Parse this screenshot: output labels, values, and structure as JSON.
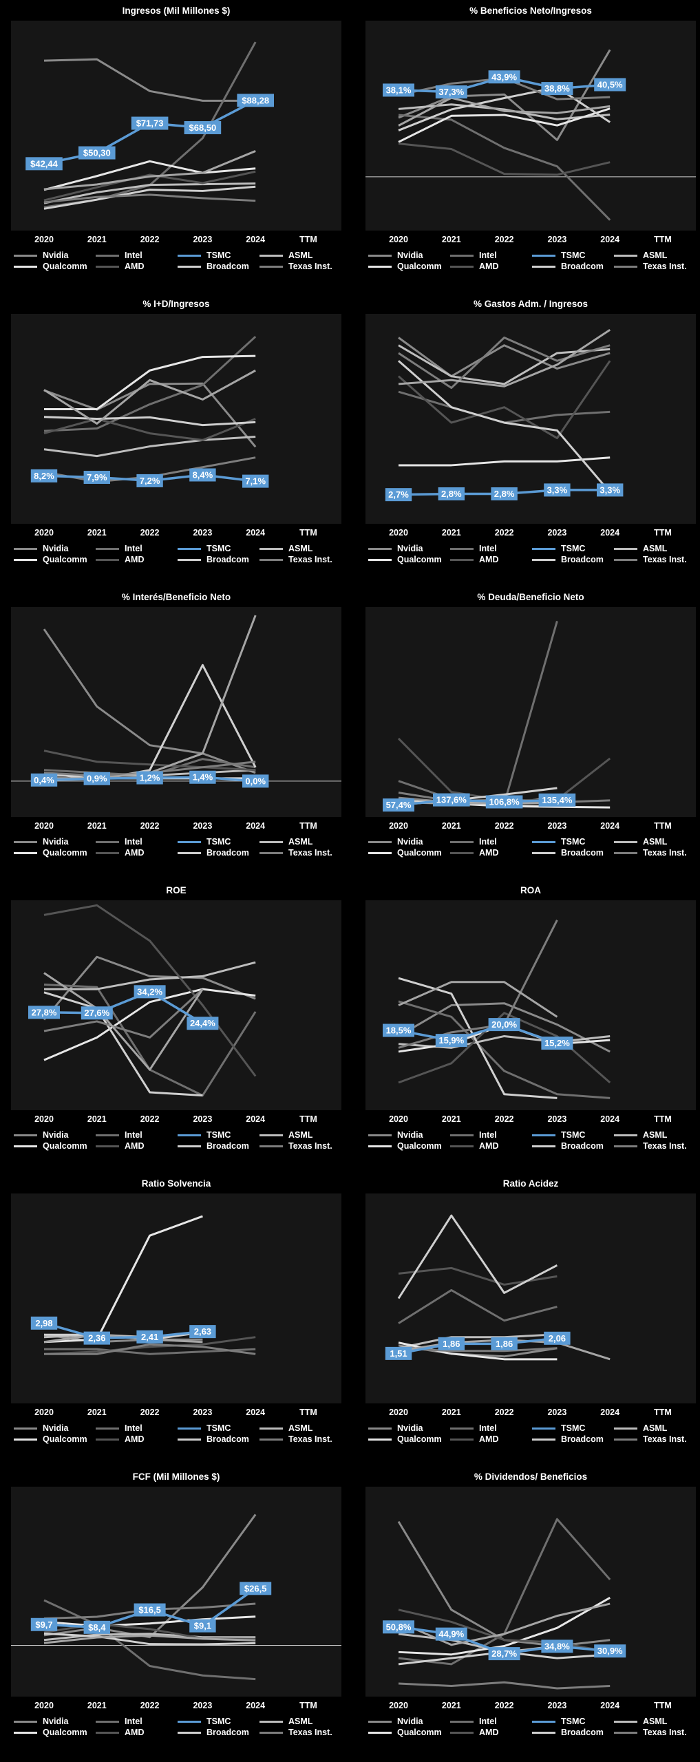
{
  "legend": [
    {
      "name": "Nvidia",
      "color": "#8a8a8a"
    },
    {
      "name": "Intel",
      "color": "#6f6f6f"
    },
    {
      "name": "TSMC",
      "color": "#5b9bd5"
    },
    {
      "name": "ASML",
      "color": "#bdbdbd"
    },
    {
      "name": "Qualcomm",
      "color": "#e6e6e6"
    },
    {
      "name": "AMD",
      "color": "#555555"
    },
    {
      "name": "Broadcom",
      "color": "#cfcfcf"
    },
    {
      "name": "Texas Inst.",
      "color": "#7d7d7d"
    }
  ],
  "chart_data": [
    {
      "title": "Ingresos (Mil Millones $)",
      "type": "line",
      "categories": [
        "2020",
        "2021",
        "2022",
        "2023",
        "2024",
        "TTM"
      ],
      "ylim": [
        0,
        140
      ],
      "highlight": {
        "series": "TSMC",
        "values": [
          42.44,
          50.3,
          71.73,
          68.5,
          88.28
        ],
        "labels": [
          "$42,44",
          "$50,30",
          "$71,73",
          "$68,50",
          "$88,28"
        ]
      },
      "others": [
        [
          117,
          118,
          95,
          88,
          88
        ],
        [
          10.9,
          16.4,
          26.9,
          60.9,
          130.5
        ],
        [
          13.9,
          21.7,
          27.1,
          27.6,
          28.1
        ],
        [
          23.5,
          33.5,
          44.2,
          35.8,
          39
        ],
        [
          15.9,
          25.3,
          34.4,
          28.4,
          36.7
        ],
        [
          9.8,
          16.4,
          23.6,
          22.7,
          25.8
        ],
        [
          14.5,
          18.3,
          20,
          17.5,
          15.6
        ],
        [
          23.9,
          27.4,
          33.2,
          35.8,
          51.6
        ]
      ]
    },
    {
      "title": "% Beneficios Neto/Ingresos",
      "type": "line",
      "categories": [
        "2020",
        "2021",
        "2022",
        "2023",
        "2024",
        "TTM"
      ],
      "ylim": [
        -20,
        65
      ],
      "highlight": {
        "series": "TSMC",
        "values": [
          38.1,
          37.3,
          43.9,
          38.8,
          40.5
        ],
        "labels": [
          "38,1%",
          "37,3%",
          "43,9%",
          "38,8%",
          "40,5%"
        ]
      },
      "others": [
        [
          26,
          35.3,
          36.2,
          16.2,
          55.8
        ],
        [
          27.2,
          25.1,
          12.7,
          4.6,
          -19
        ],
        [
          29.8,
          31.8,
          29.6,
          25.3,
          27.3
        ],
        [
          15.3,
          26.8,
          27.2,
          22.6,
          30
        ],
        [
          14.6,
          12.2,
          1.3,
          0.9,
          6.4
        ],
        [
          20.4,
          29.6,
          34.6,
          39.3,
          24
        ],
        [
          35.9,
          41,
          43.3,
          34.1,
          35
        ],
        [
          22.5,
          34.7,
          28.9,
          28,
          31
        ]
      ]
    },
    {
      "title": "% I+D/Ingresos",
      "type": "line",
      "categories": [
        "2020",
        "2021",
        "2022",
        "2023",
        "2024",
        "TTM"
      ],
      "ylim": [
        0,
        40
      ],
      "highlight": {
        "series": "TSMC",
        "values": [
          8.2,
          7.9,
          7.2,
          8.4,
          7.1
        ],
        "labels": [
          "8,2%",
          "7,9%",
          "7,2%",
          "8,4%",
          "7,1%"
        ]
      },
      "others": [
        [
          25.9,
          21.9,
          27.2,
          27.3,
          14.2
        ],
        [
          17.5,
          18,
          23,
          27,
          37
        ],
        [
          13.7,
          12.3,
          14.3,
          15.6,
          16.3
        ],
        [
          22,
          22,
          30,
          32.8,
          33
        ],
        [
          17,
          20,
          17,
          15.6,
          20
        ],
        [
          20.4,
          20,
          20.3,
          18.7,
          19.3
        ],
        [
          9,
          7,
          8,
          10,
          12
        ],
        [
          26,
          19,
          28,
          24,
          30
        ]
      ]
    },
    {
      "title": "% Gastos Adm. / Ingresos",
      "type": "line",
      "categories": [
        "2020",
        "2021",
        "2022",
        "2023",
        "2024",
        "TTM"
      ],
      "ylim": [
        0,
        25
      ],
      "highlight": {
        "series": "TSMC",
        "values": [
          2.7,
          2.8,
          2.8,
          3.3,
          3.3
        ],
        "labels": [
          "2,7%",
          "2,8%",
          "2,8%",
          "3,3%",
          "3,3%"
        ]
      },
      "others": [
        [
          23,
          18,
          22,
          19,
          21
        ],
        [
          16,
          14,
          12,
          13,
          13.4
        ],
        [
          22,
          18,
          17,
          21,
          21.5
        ],
        [
          6.5,
          6.5,
          7,
          7,
          7.5
        ],
        [
          18,
          12,
          14,
          10,
          20
        ],
        [
          20,
          14,
          12,
          11,
          3
        ],
        [
          21,
          16.5,
          23,
          20,
          22
        ],
        [
          17,
          17.5,
          16.7,
          19.5,
          24
        ]
      ]
    },
    {
      "title": "% Interés/Beneficio Neto",
      "type": "line",
      "categories": [
        "2020",
        "2021",
        "2022",
        "2023",
        "2024",
        "TTM"
      ],
      "ylim": [
        -10,
        60
      ],
      "highlight": {
        "series": "TSMC",
        "values": [
          0.4,
          0.9,
          1.2,
          1.4,
          0.0
        ],
        "labels": [
          "0,4%",
          "0,9%",
          "1,2%",
          "1,4%",
          "0,0%"
        ]
      },
      "others": [
        [
          55,
          27,
          13,
          10,
          3
        ],
        [
          4,
          3,
          2,
          8,
          5
        ],
        [
          2,
          2,
          2,
          3,
          4
        ],
        [
          1,
          1,
          1,
          1,
          1
        ],
        [
          11,
          7,
          6,
          5,
          4
        ],
        [
          3,
          0.5,
          4,
          42,
          5
        ],
        [
          3,
          2,
          3,
          5,
          7
        ],
        [
          1,
          1,
          3,
          10,
          60
        ]
      ]
    },
    {
      "title": "% Deuda/Beneficio Neto",
      "type": "line",
      "categories": [
        "2020",
        "2021",
        "2022",
        "2023",
        "2024",
        "TTM"
      ],
      "ylim": [
        0,
        3000
      ],
      "highlight": {
        "series": "TSMC",
        "values": [
          57.4,
          137.6,
          106.8,
          135.4
        ],
        "labels": [
          "57,4%",
          "137,6%",
          "106,8%",
          "135,4%"
        ]
      },
      "others": [
        [
          170,
          100,
          60,
          40
        ],
        [
          430,
          150,
          80,
          2910
        ],
        [
          100,
          120,
          80,
          180
        ],
        [
          130,
          80,
          40,
          30,
          20
        ],
        [
          1090,
          260,
          130,
          140,
          780
        ],
        [
          60,
          130,
          220,
          320
        ],
        [
          250,
          120,
          140,
          100,
          130
        ],
        [
          100,
          80,
          90,
          90
        ]
      ]
    },
    {
      "title": "ROE",
      "type": "line",
      "categories": [
        "2020",
        "2021",
        "2022",
        "2023",
        "2024",
        "TTM"
      ],
      "ylim": [
        0,
        60
      ],
      "highlight": {
        "series": "TSMC",
        "values": [
          27.8,
          27.6,
          34.2,
          24.4
        ],
        "labels": [
          "27,8%",
          "27,6%",
          "34,2%",
          "24,4%"
        ]
      },
      "others": [
        [
          25.5,
          45,
          39,
          38.5,
          32
        ],
        [
          36.4,
          35.6,
          10,
          2,
          28
        ],
        [
          35,
          35,
          38,
          39,
          43.3
        ],
        [
          13,
          20,
          31,
          35,
          33
        ],
        [
          58,
          61,
          50,
          30,
          8
        ],
        [
          34,
          29,
          3,
          2
        ],
        [
          22,
          25,
          20,
          35
        ],
        [
          40,
          29,
          10,
          35
        ]
      ]
    },
    {
      "title": "ROA",
      "type": "line",
      "categories": [
        "2020",
        "2021",
        "2022",
        "2023",
        "2024",
        "TTM"
      ],
      "ylim": [
        0,
        50
      ],
      "highlight": {
        "series": "TSMC",
        "values": [
          18.5,
          15.9,
          20.0,
          15.2
        ],
        "labels": [
          "18,5%",
          "15,9%",
          "20,0%",
          "15,2%"
        ]
      },
      "others": [
        [
          17,
          25,
          25.5,
          20,
          13
        ],
        [
          26,
          22,
          8,
          2,
          1
        ],
        [
          15,
          14,
          17,
          15.5,
          17
        ],
        [
          13,
          15,
          20,
          15,
          16
        ],
        [
          5,
          10,
          23,
          17,
          5
        ],
        [
          32,
          28,
          2,
          1
        ],
        [
          14,
          18,
          20,
          47
        ],
        [
          25,
          31,
          31,
          22
        ]
      ]
    },
    {
      "title": "Ratio Solvencia",
      "type": "line",
      "categories": [
        "2020",
        "2021",
        "2022",
        "2023",
        "2024",
        "TTM"
      ],
      "ylim": [
        0,
        8
      ],
      "highlight": {
        "series": "TSMC",
        "values": [
          2.98,
          2.36,
          2.41,
          2.63
        ],
        "labels": [
          "2,98",
          "2,36",
          "2,41",
          "2,63"
        ]
      },
      "others": [
        [
          2.5,
          2.2,
          2.3,
          2.3
        ],
        [
          1.9,
          1.9,
          1.7,
          1.8,
          1.9
        ],
        [
          2.4,
          2.5,
          2.4,
          2.6
        ],
        [
          2.2,
          2.3,
          6.6,
          7.4
        ],
        [
          1.7,
          1.8,
          2,
          2.1,
          2.4
        ],
        [
          2.5,
          2.5,
          2.3,
          2.6
        ],
        [
          1.7,
          1.7,
          2.1,
          2,
          1.7
        ],
        [
          2.2,
          2.5,
          2.3,
          2.2
        ]
      ]
    },
    {
      "title": "Ratio Acidez",
      "type": "line",
      "categories": [
        "2020",
        "2021",
        "2022",
        "2023",
        "2024",
        "TTM"
      ],
      "ylim": [
        0,
        7
      ],
      "highlight": {
        "series": "TSMC",
        "values": [
          1.51,
          1.86,
          1.86,
          2.06
        ],
        "labels": [
          "1,51",
          "1,86",
          "1,86",
          "2,06"
        ]
      },
      "others": [
        [
          1.8,
          1.5,
          1.4,
          1.7
        ],
        [
          2.6,
          3.8,
          2.7,
          3.2
        ],
        [
          1.7,
          2.1,
          2.1,
          2.2
        ],
        [
          1.9,
          1.5,
          1.3,
          1.3
        ],
        [
          4.4,
          4.6,
          4,
          4.3
        ],
        [
          3.5,
          6.5,
          3.7,
          4.7
        ],
        [
          1.7,
          1.6,
          1.6,
          1.7
        ],
        [
          1.6,
          1.9,
          2,
          1.9,
          1.3
        ]
      ]
    },
    {
      "title": "FCF (Mil Millones $)",
      "type": "line",
      "categories": [
        "2020",
        "2021",
        "2022",
        "2023",
        "2024",
        "TTM"
      ],
      "ylim": [
        -20,
        70
      ],
      "highlight": {
        "series": "TSMC",
        "values": [
          9.7,
          8.4,
          16.5,
          9.1,
          26.5
        ],
        "labels": [
          "$9,7",
          "$8,4",
          "$16,5",
          "$9,1",
          "$26,5"
        ]
      },
      "others": [
        [
          4.7,
          8.1,
          3.8,
          27,
          60.9
        ],
        [
          21,
          9.6,
          -9.6,
          -14,
          -15.7
        ],
        [
          2.5,
          5,
          5.4,
          3.8,
          3.8
        ],
        [
          11,
          9,
          10.2,
          12.1,
          13.4
        ],
        [
          6,
          10,
          7.6,
          3.2,
          3
        ],
        [
          5.5,
          4.2,
          0.6,
          0.5,
          1
        ],
        [
          12.5,
          13.3,
          16.7,
          17.6,
          19.4
        ],
        [
          1.1,
          3.7,
          4.6,
          3.1,
          2.3
        ]
      ]
    },
    {
      "title": "% Dividendos/ Beneficios",
      "type": "line",
      "categories": [
        "2020",
        "2021",
        "2022",
        "2023",
        "2024",
        "TTM"
      ],
      "ylim": [
        0,
        160
      ],
      "highlight": {
        "series": "TSMC",
        "values": [
          50.8,
          44.9,
          28.7,
          34.8,
          30.9
        ],
        "labels": [
          "50,8%",
          "44,9%",
          "28,7%",
          "34,8%",
          "30,9%"
        ]
      },
      "others": [
        [
          138,
          65,
          40,
          35,
          40
        ],
        [
          25,
          20,
          45,
          140,
          90
        ],
        [
          45,
          40,
          30,
          35
        ],
        [
          30,
          28,
          35,
          50,
          75
        ],
        [
          65,
          55,
          40,
          38,
          30
        ],
        [
          20,
          25,
          30,
          25,
          28
        ],
        [
          4,
          2,
          5,
          0,
          2
        ],
        [
          55,
          36,
          45,
          60,
          70
        ]
      ]
    }
  ]
}
